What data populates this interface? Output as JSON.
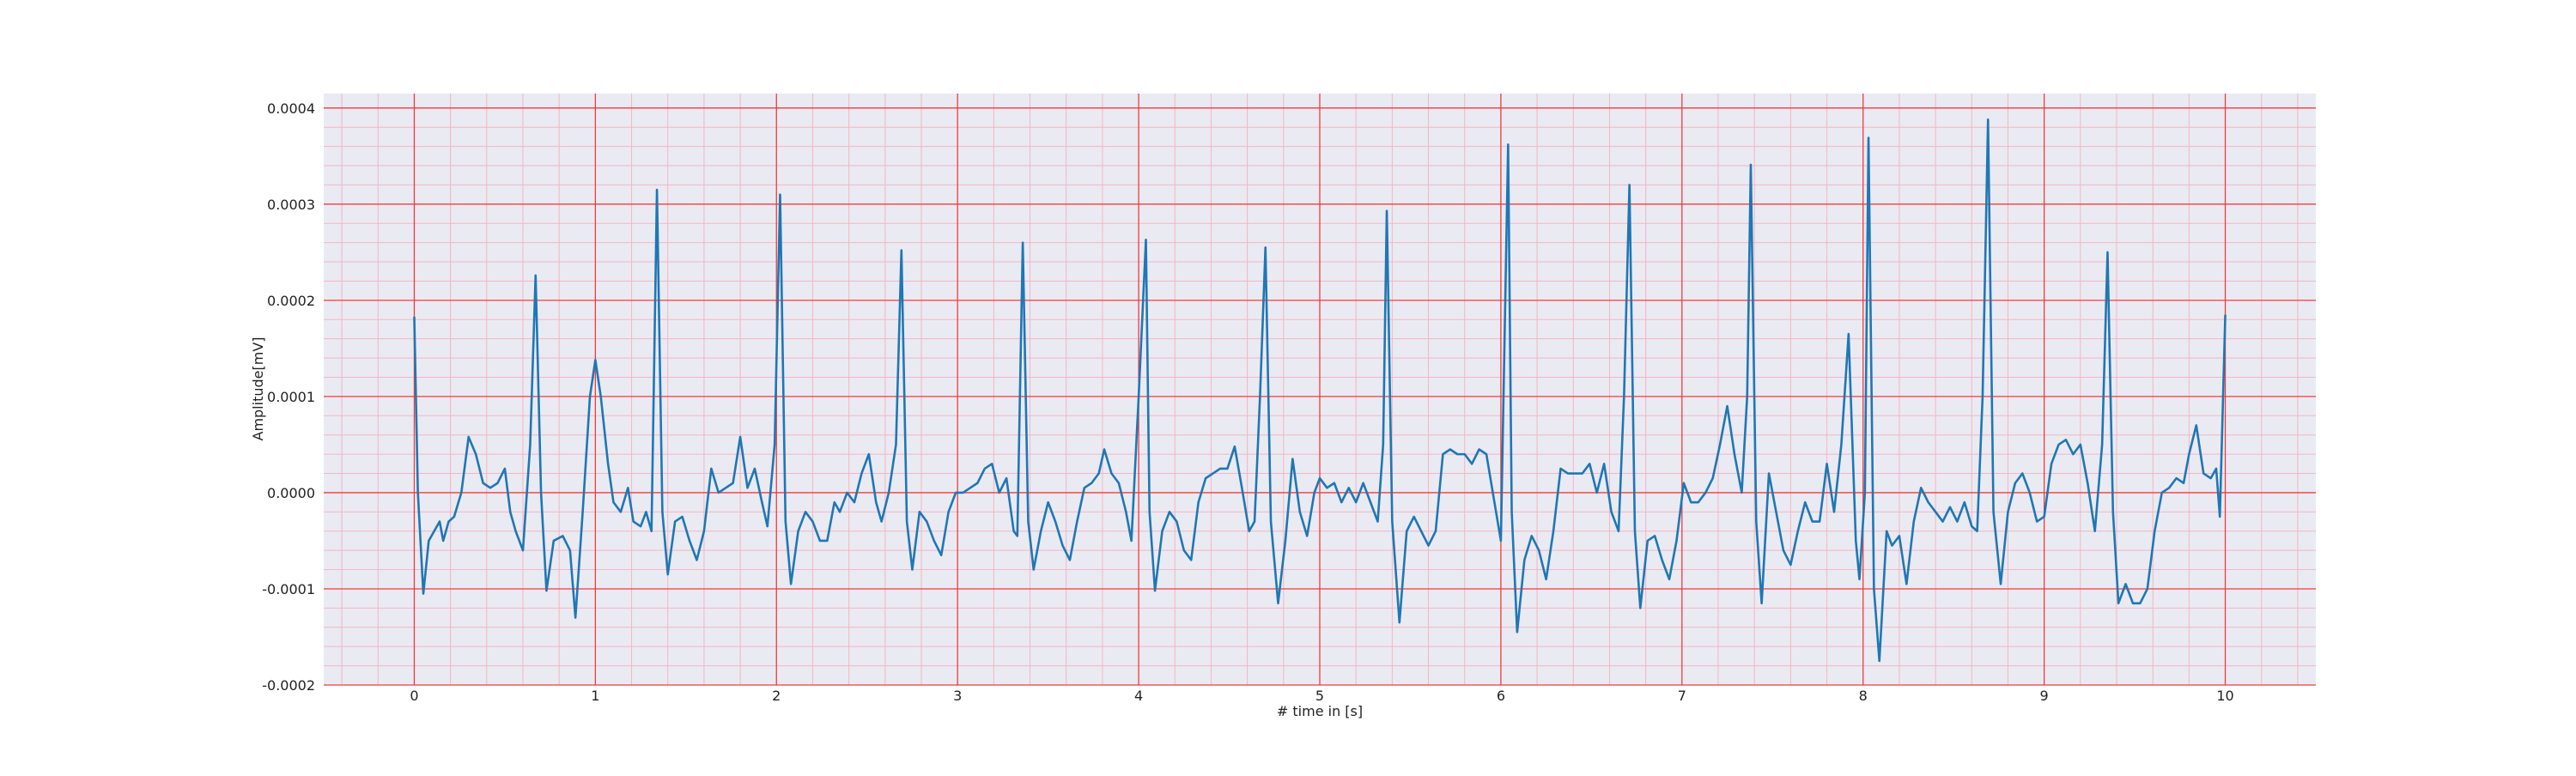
{
  "chart_data": {
    "type": "line",
    "xlabel": "# time in [s]",
    "ylabel": "Amplitude[mV]",
    "xlim": [
      -0.5,
      10.5
    ],
    "xticks": [
      0,
      1,
      2,
      3,
      4,
      5,
      6,
      7,
      8,
      9,
      10
    ],
    "ylim": [
      -0.0002,
      0.000415
    ],
    "yticks": [
      -0.0002,
      -0.0001,
      {
        "value": 0,
        "label": "0.0000"
      },
      0.0001,
      0.0002,
      0.0003,
      0.0004
    ],
    "grid": true,
    "minor_grid": true,
    "color": "#1f77b4",
    "x": [
      0,
      0.02,
      0.05,
      0.08,
      0.11,
      0.14,
      0.16,
      0.19,
      0.22,
      0.26,
      0.3,
      0.34,
      0.38,
      0.42,
      0.46,
      0.5,
      0.53,
      0.56,
      0.6,
      0.64,
      0.67,
      0.7,
      0.73,
      0.77,
      0.82,
      0.86,
      0.89,
      0.93,
      0.97,
      1.0,
      1.03,
      1.07,
      1.1,
      1.14,
      1.18,
      1.21,
      1.25,
      1.28,
      1.31,
      1.34,
      1.37,
      1.4,
      1.44,
      1.48,
      1.52,
      1.56,
      1.6,
      1.64,
      1.68,
      1.72,
      1.76,
      1.8,
      1.84,
      1.88,
      1.92,
      1.95,
      1.99,
      2.02,
      2.05,
      2.08,
      2.12,
      2.16,
      2.2,
      2.24,
      2.28,
      2.32,
      2.35,
      2.39,
      2.43,
      2.47,
      2.51,
      2.55,
      2.58,
      2.62,
      2.66,
      2.69,
      2.72,
      2.75,
      2.79,
      2.83,
      2.87,
      2.91,
      2.95,
      2.99,
      3.03,
      3.07,
      3.11,
      3.15,
      3.19,
      3.23,
      3.27,
      3.31,
      3.33,
      3.36,
      3.39,
      3.42,
      3.46,
      3.5,
      3.54,
      3.58,
      3.62,
      3.66,
      3.7,
      3.74,
      3.78,
      3.81,
      3.85,
      3.89,
      3.93,
      3.96,
      4.0,
      4.04,
      4.06,
      4.09,
      4.13,
      4.17,
      4.21,
      4.25,
      4.29,
      4.33,
      4.37,
      4.41,
      4.45,
      4.49,
      4.53,
      4.57,
      4.61,
      4.64,
      4.67,
      4.7,
      4.73,
      4.77,
      4.81,
      4.85,
      4.89,
      4.93,
      4.97,
      5.0,
      5.04,
      5.08,
      5.12,
      5.16,
      5.2,
      5.24,
      5.28,
      5.32,
      5.35,
      5.37,
      5.4,
      5.44,
      5.48,
      5.52,
      5.56,
      5.6,
      5.64,
      5.68,
      5.72,
      5.76,
      5.8,
      5.84,
      5.88,
      5.92,
      5.96,
      6.0,
      6.04,
      6.06,
      6.09,
      6.13,
      6.17,
      6.21,
      6.25,
      6.29,
      6.33,
      6.37,
      6.41,
      6.45,
      6.49,
      6.53,
      6.57,
      6.61,
      6.65,
      6.68,
      6.71,
      6.74,
      6.77,
      6.81,
      6.85,
      6.89,
      6.93,
      6.97,
      7.01,
      7.05,
      7.09,
      7.13,
      7.17,
      7.21,
      7.25,
      7.29,
      7.33,
      7.36,
      7.38,
      7.41,
      7.44,
      7.48,
      7.52,
      7.56,
      7.6,
      7.64,
      7.68,
      7.72,
      7.76,
      7.8,
      7.84,
      7.88,
      7.92,
      7.96,
      7.98,
      8.01,
      8.03,
      8.06,
      8.09,
      8.13,
      8.16,
      8.2,
      8.24,
      8.28,
      8.32,
      8.36,
      8.4,
      8.44,
      8.48,
      8.52,
      8.56,
      8.6,
      8.63,
      8.66,
      8.69,
      8.72,
      8.76,
      8.8,
      8.84,
      8.88,
      8.92,
      8.96,
      9.0,
      9.04,
      9.08,
      9.12,
      9.16,
      9.2,
      9.24,
      9.28,
      9.32,
      9.35,
      9.38,
      9.41,
      9.45,
      9.49,
      9.53,
      9.57,
      9.61,
      9.65,
      9.69,
      9.73,
      9.77,
      9.8,
      9.84,
      9.88,
      9.92,
      9.95,
      9.97,
      10.0
    ],
    "values": [
      0.000183,
      0,
      -0.000105,
      -5e-05,
      -4e-05,
      -3e-05,
      -5e-05,
      -3e-05,
      -2.5e-05,
      0,
      5.8e-05,
      4e-05,
      1e-05,
      5e-06,
      1e-05,
      2.5e-05,
      -2e-05,
      -4e-05,
      -6e-05,
      5e-05,
      0.000226,
      0,
      -0.000102,
      -5e-05,
      -4.5e-05,
      -6e-05,
      -0.00013,
      -2e-05,
      0.0001,
      0.000138,
      0.0001,
      3e-05,
      -1e-05,
      -2e-05,
      5e-06,
      -3e-05,
      -3.5e-05,
      -2e-05,
      -4e-05,
      0.000315,
      -2e-05,
      -8.5e-05,
      -3e-05,
      -2.5e-05,
      -5e-05,
      -7e-05,
      -4e-05,
      2.5e-05,
      0,
      5e-06,
      1e-05,
      5.8e-05,
      5e-06,
      2.5e-05,
      -1e-05,
      -3.5e-05,
      5e-05,
      0.00031,
      -3e-05,
      -9.5e-05,
      -4e-05,
      -2e-05,
      -3e-05,
      -5e-05,
      -5e-05,
      -1e-05,
      -2e-05,
      0,
      -1e-05,
      2e-05,
      4e-05,
      -1e-05,
      -3e-05,
      0,
      5e-05,
      0.000252,
      -3e-05,
      -8e-05,
      -2e-05,
      -3e-05,
      -5e-05,
      -6.5e-05,
      -2e-05,
      0,
      0,
      5e-06,
      1e-05,
      2.5e-05,
      3e-05,
      0,
      1.5e-05,
      -4e-05,
      -4.5e-05,
      0.00026,
      -3e-05,
      -8e-05,
      -4e-05,
      -1e-05,
      -3e-05,
      -5.5e-05,
      -7e-05,
      -3e-05,
      5e-06,
      1e-05,
      2e-05,
      4.5e-05,
      2e-05,
      1e-05,
      -2e-05,
      -5e-05,
      0.0001,
      0.000263,
      -2e-05,
      -0.000102,
      -4e-05,
      -2e-05,
      -3e-05,
      -6e-05,
      -7e-05,
      -1e-05,
      1.5e-05,
      2e-05,
      2.5e-05,
      2.5e-05,
      4.8e-05,
      5e-06,
      -4e-05,
      -3e-05,
      0.0001,
      0.000255,
      -3e-05,
      -0.000115,
      -5e-05,
      3.5e-05,
      -2e-05,
      -4.5e-05,
      0,
      1.5e-05,
      5e-06,
      1e-05,
      -1e-05,
      5e-06,
      -1e-05,
      1e-05,
      -1e-05,
      -3e-05,
      5e-05,
      0.000293,
      -3e-05,
      -0.000135,
      -4e-05,
      -2.5e-05,
      -4e-05,
      -5.5e-05,
      -4e-05,
      4e-05,
      4.5e-05,
      4e-05,
      4e-05,
      3e-05,
      4.5e-05,
      4e-05,
      -5e-06,
      -5e-05,
      0.000362,
      -2e-05,
      -0.000145,
      -7e-05,
      -4.5e-05,
      -6e-05,
      -9e-05,
      -4e-05,
      2.5e-05,
      2e-05,
      2e-05,
      2e-05,
      3e-05,
      0,
      3e-05,
      -2e-05,
      -4e-05,
      0.0001,
      0.00032,
      -4e-05,
      -0.00012,
      -5e-05,
      -4.5e-05,
      -7e-05,
      -9e-05,
      -5e-05,
      1e-05,
      -1e-05,
      -1e-05,
      0,
      1.5e-05,
      5e-05,
      9e-05,
      4e-05,
      0,
      0.0001,
      0.000341,
      -3e-05,
      -0.000115,
      2e-05,
      -2e-05,
      -6e-05,
      -7.5e-05,
      -4e-05,
      -1e-05,
      -3e-05,
      -3e-05,
      3e-05,
      -2e-05,
      5e-05,
      0.000165,
      -5e-05,
      -9e-05,
      0,
      0.000369,
      -0.0001,
      -0.000175,
      -4e-05,
      -5.5e-05,
      -4.5e-05,
      -9.5e-05,
      -3e-05,
      5e-06,
      -1e-05,
      -2e-05,
      -3e-05,
      -1.5e-05,
      -3e-05,
      -1e-05,
      -3.5e-05,
      -4e-05,
      0.0001,
      0.000388,
      -2e-05,
      -9.5e-05,
      -2e-05,
      1e-05,
      2e-05,
      0,
      -3e-05,
      -2.5e-05,
      3e-05,
      5e-05,
      5.5e-05,
      4e-05,
      5e-05,
      1e-05,
      -4e-05,
      5e-05,
      0.00025,
      -2e-05,
      -0.000115,
      -9.5e-05,
      -0.000115,
      -0.000115,
      -0.0001,
      -4e-05,
      0,
      5e-06,
      1.5e-05,
      1e-05,
      4e-05,
      7e-05,
      2e-05,
      1.5e-05,
      2.5e-05,
      -2.5e-05,
      0.000185
    ]
  }
}
